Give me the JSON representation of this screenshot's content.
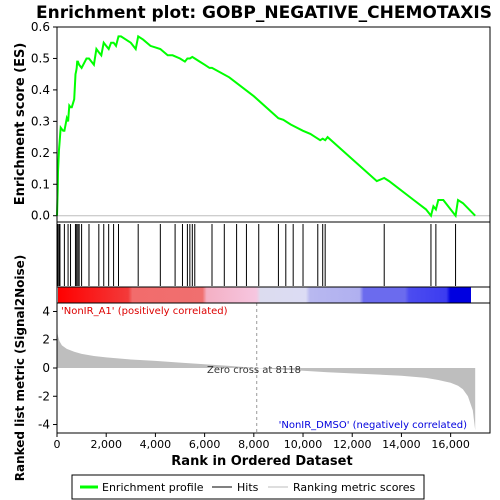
{
  "chart_data": {
    "type": "line",
    "title": "Enrichment plot: GOBP_NEGATIVE_CHEMOTAXIS",
    "colors": {
      "profile": "#00ff00",
      "hits": "#000000",
      "metric": "#bebebe",
      "positive": "#ff0000",
      "negative": "#0000ff"
    },
    "es_panel": {
      "ylabel": "Enrichment score (ES)",
      "ylim": [
        -0.02,
        0.6
      ],
      "yticks": [
        0.0,
        0.1,
        0.2,
        0.3,
        0.4,
        0.5,
        0.6
      ],
      "ytick_labels": [
        "0.0",
        "0.1",
        "0.2",
        "0.3",
        "0.4",
        "0.5",
        "0.6"
      ],
      "series": [
        {
          "name": "Enrichment profile",
          "x": [
            0,
            30,
            40,
            80,
            100,
            150,
            200,
            250,
            300,
            400,
            450,
            500,
            550,
            600,
            700,
            750,
            780,
            800,
            820,
            850,
            900,
            1000,
            1200,
            1300,
            1500,
            1600,
            1700,
            1800,
            1900,
            2000,
            2100,
            2200,
            2300,
            2400,
            2500,
            2600,
            2800,
            3000,
            3200,
            3300,
            3500,
            3800,
            4000,
            4200,
            4500,
            4700,
            5000,
            5200,
            5300,
            5400,
            5500,
            5600,
            5800,
            6000,
            6200,
            6300,
            7000,
            8000,
            9000,
            9200,
            9500,
            10000,
            10300,
            10500,
            10700,
            10800,
            10900,
            11000,
            12000,
            13000,
            13300,
            13500,
            14500,
            15000,
            15200,
            15300,
            15400,
            15500,
            15700,
            16000,
            16200,
            16300,
            16500,
            17000
          ],
          "y": [
            0.0,
            0.08,
            0.14,
            0.21,
            0.23,
            0.28,
            0.275,
            0.27,
            0.27,
            0.31,
            0.3,
            0.35,
            0.345,
            0.345,
            0.37,
            0.45,
            0.46,
            0.47,
            0.49,
            0.49,
            0.48,
            0.47,
            0.5,
            0.5,
            0.48,
            0.53,
            0.52,
            0.51,
            0.55,
            0.54,
            0.53,
            0.55,
            0.55,
            0.54,
            0.57,
            0.57,
            0.56,
            0.55,
            0.53,
            0.57,
            0.56,
            0.54,
            0.535,
            0.53,
            0.51,
            0.51,
            0.5,
            0.49,
            0.5,
            0.5,
            0.505,
            0.5,
            0.49,
            0.48,
            0.47,
            0.47,
            0.44,
            0.38,
            0.31,
            0.305,
            0.29,
            0.27,
            0.26,
            0.25,
            0.24,
            0.245,
            0.24,
            0.25,
            0.18,
            0.11,
            0.12,
            0.11,
            0.05,
            0.02,
            0.0,
            0.03,
            0.02,
            0.05,
            0.05,
            0.02,
            0.0,
            0.05,
            0.04,
            0.0
          ]
        }
      ]
    },
    "hits": [
      30,
      80,
      120,
      300,
      450,
      550,
      750,
      800,
      850,
      900,
      1000,
      1300,
      1700,
      1900,
      2100,
      2300,
      2500,
      3300,
      4200,
      4800,
      5100,
      5300,
      5400,
      5500,
      5600,
      6300,
      6800,
      7300,
      7700,
      8200,
      9000,
      9300,
      9600,
      10000,
      10600,
      10800,
      10900,
      13300,
      15200,
      15400,
      16200
    ],
    "metric_panel": {
      "ylabel": "Ranked list metric (Signal2Noise)",
      "xlabel": "Rank in Ordered Dataset",
      "ylim": [
        -4.6,
        4.6
      ],
      "yticks": [
        -4,
        -2,
        0,
        2,
        4
      ],
      "ytick_labels": [
        "-4",
        "-2",
        "0",
        "2",
        "4"
      ],
      "xlim": [
        0,
        17600
      ],
      "xticks": [
        0,
        2000,
        4000,
        6000,
        8000,
        10000,
        12000,
        14000,
        16000
      ],
      "xtick_labels": [
        "0",
        "2,000",
        "4,000",
        "6,000",
        "8,000",
        "10,000",
        "12,000",
        "14,000",
        "16,000"
      ],
      "x": [
        0,
        50,
        100,
        200,
        400,
        700,
        1000,
        1500,
        2000,
        3000,
        4000,
        5000,
        6000,
        7000,
        8118,
        9000,
        10000,
        11000,
        12000,
        13000,
        14000,
        15000,
        15500,
        16000,
        16300,
        16500,
        16700,
        16900,
        17000
      ],
      "y": [
        2.6,
        2.2,
        1.9,
        1.6,
        1.35,
        1.15,
        1.0,
        0.85,
        0.75,
        0.6,
        0.5,
        0.38,
        0.27,
        0.15,
        0.0,
        -0.1,
        -0.2,
        -0.3,
        -0.38,
        -0.46,
        -0.55,
        -0.7,
        -0.85,
        -1.05,
        -1.25,
        -1.5,
        -2.0,
        -3.0,
        -4.4
      ],
      "zero_cross_label": "Zero cross at 8118",
      "zero_cross": 8118,
      "pos_label": "'NonIR_A1' (positively correlated)",
      "neg_label": "'NonIR_DMSO' (negatively correlated)"
    },
    "legend": {
      "position": "bottom",
      "items": [
        {
          "label": "Enrichment profile",
          "color": "#00ff00"
        },
        {
          "label": "Hits",
          "color": "#000000"
        },
        {
          "label": "Ranking metric scores",
          "color": "#bebebe"
        }
      ]
    }
  }
}
